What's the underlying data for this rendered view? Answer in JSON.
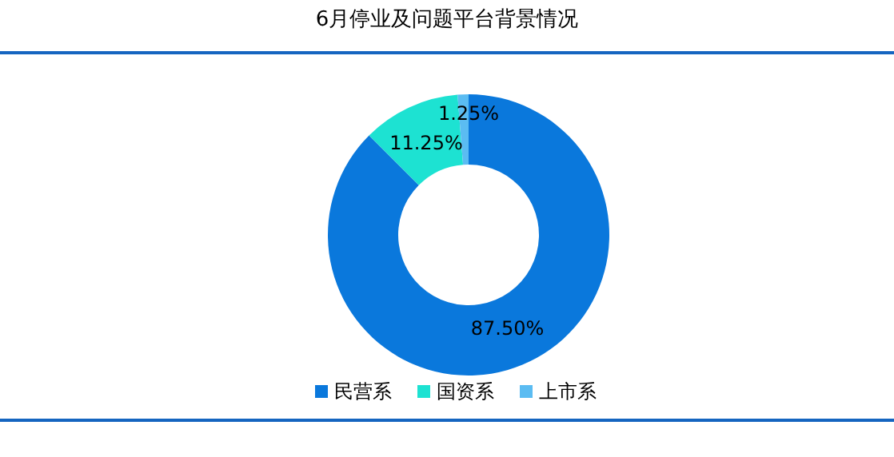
{
  "chart_data": {
    "type": "donut",
    "title": "6月停业及问题平台背景情况",
    "categories": [
      "民营系",
      "国资系",
      "上市系"
    ],
    "values": [
      87.5,
      11.25,
      1.25
    ],
    "colors": [
      "#0a78dc",
      "#1de2d2",
      "#5bbcf2"
    ],
    "value_labels": [
      "87.50%",
      "11.25%",
      "1.25%"
    ],
    "legend": "bottom"
  }
}
